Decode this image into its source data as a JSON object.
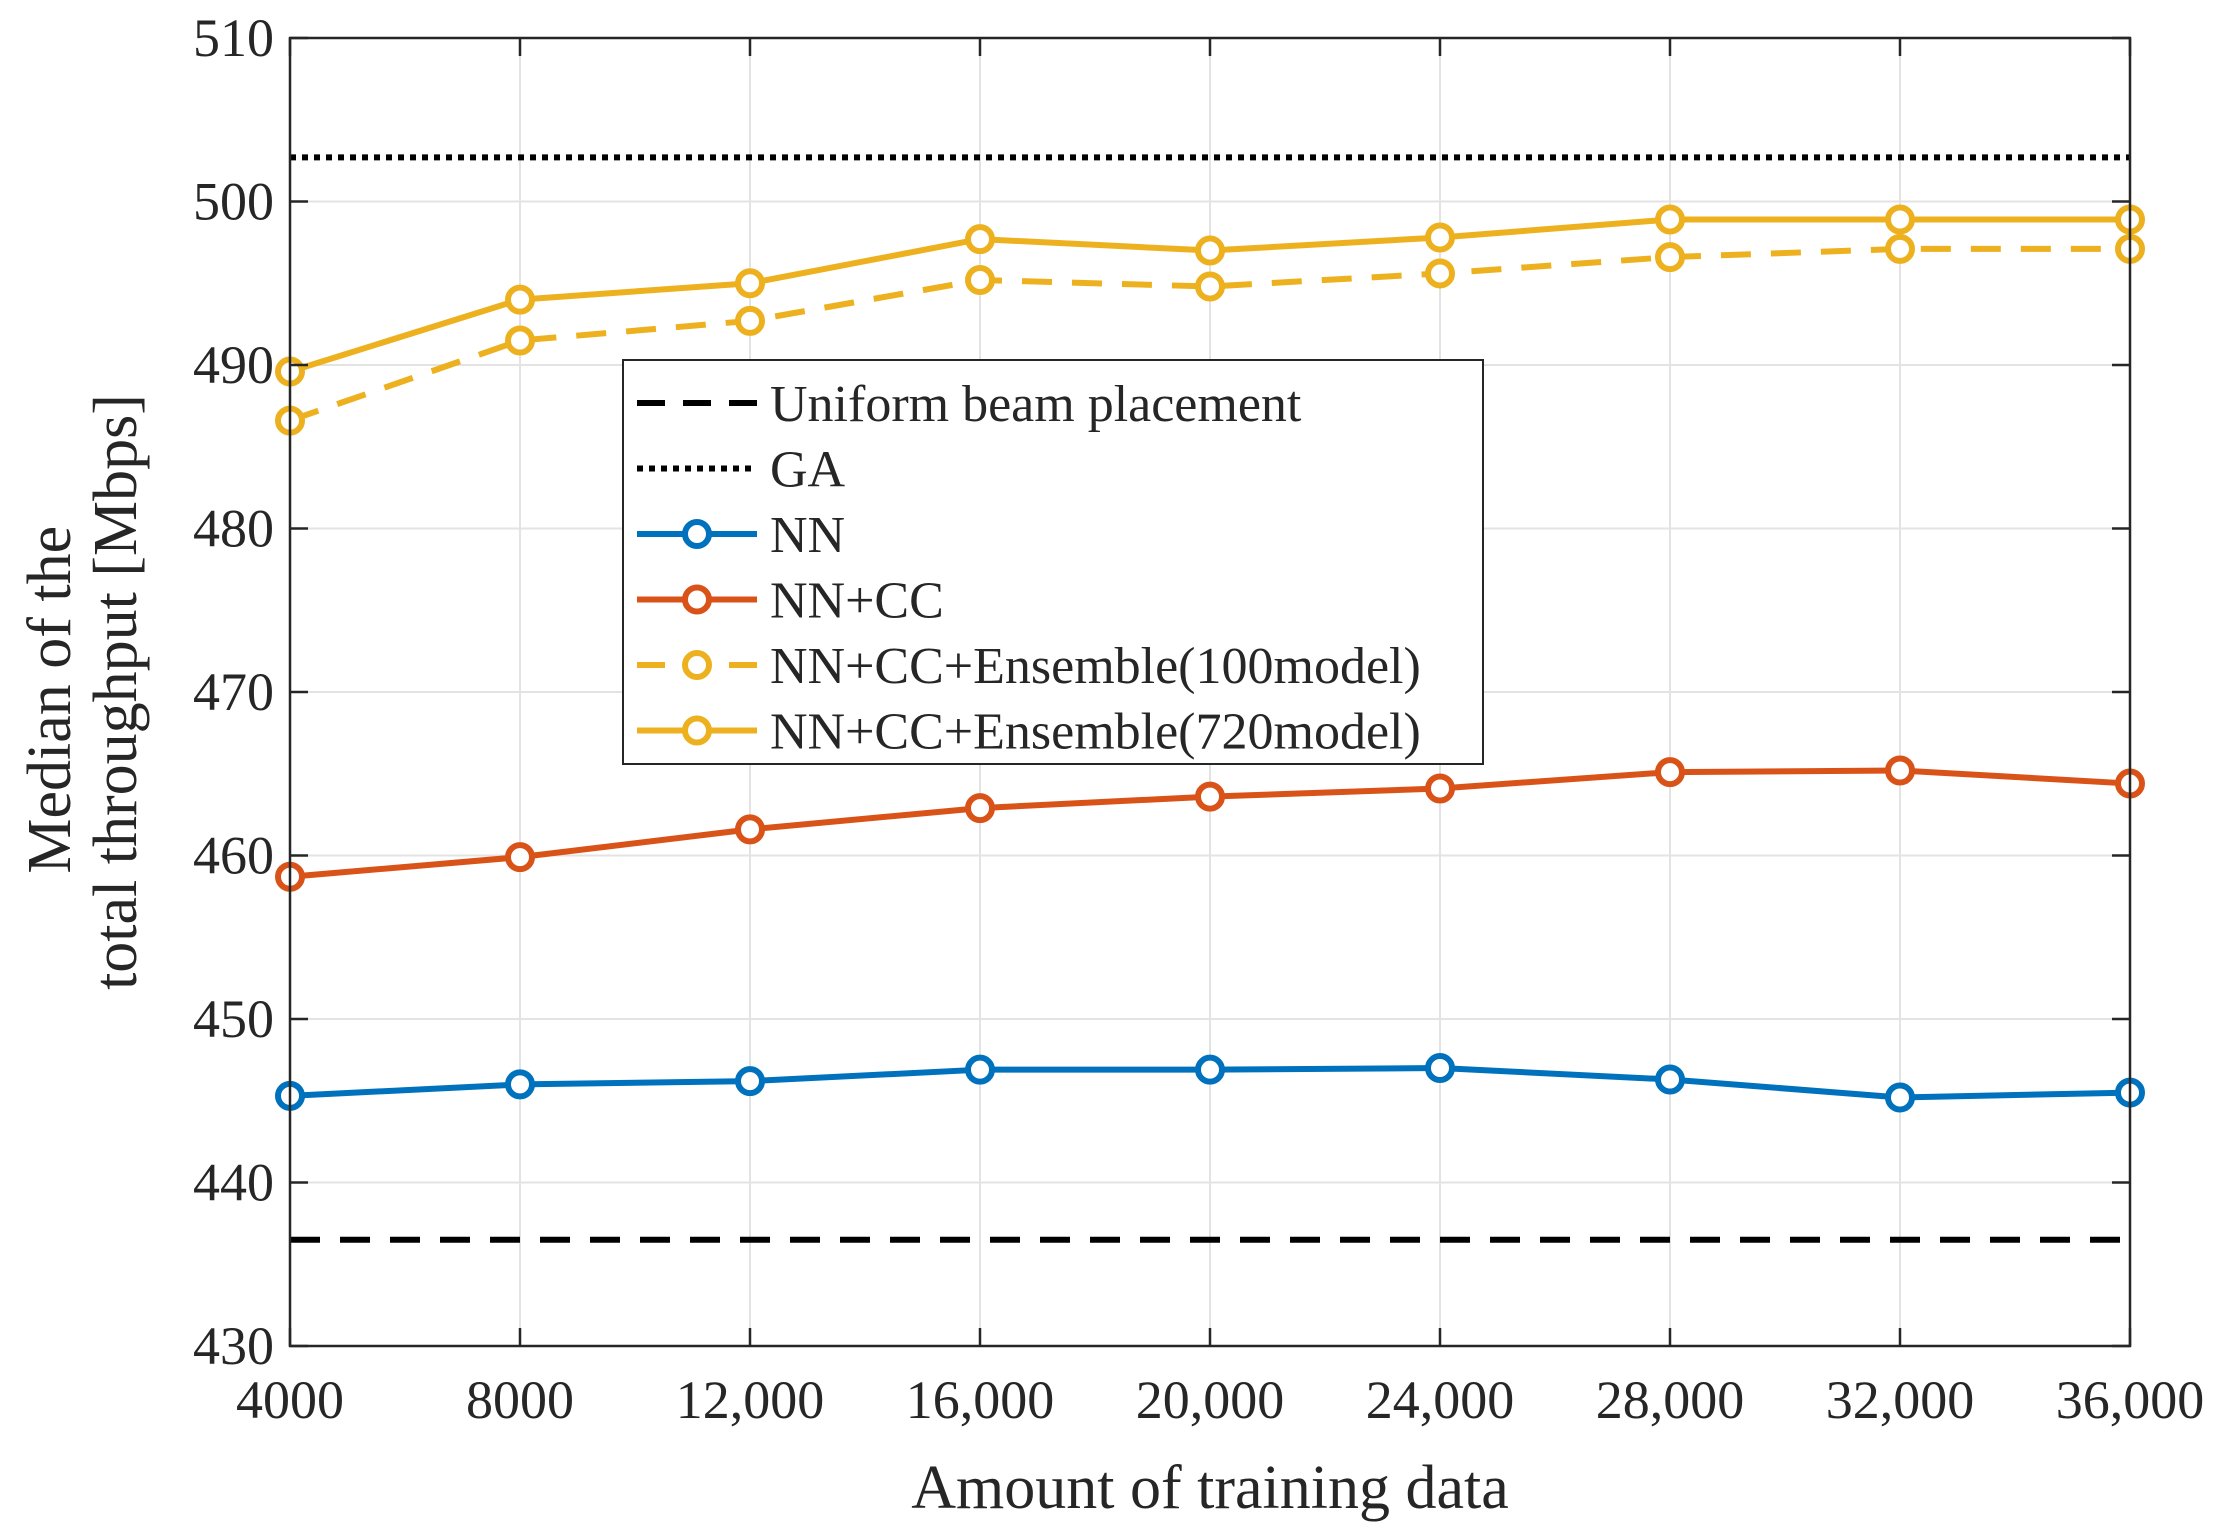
{
  "chart_data": {
    "type": "line",
    "xlabel": "Amount of training data",
    "ylabel_lines": [
      "Median of the",
      "total throughput [Mbps]"
    ],
    "x": [
      4000,
      8000,
      12000,
      16000,
      20000,
      24000,
      28000,
      32000,
      36000
    ],
    "x_tick_labels": [
      "4000",
      "8000",
      "12,000",
      "16,000",
      "20,000",
      "24,000",
      "28,000",
      "32,000",
      "36,000"
    ],
    "xlim": [
      4000,
      36000
    ],
    "ylim": [
      430,
      510
    ],
    "y_ticks": [
      430,
      440,
      450,
      460,
      470,
      480,
      490,
      500,
      510
    ],
    "grid": true,
    "legend_position": "center-left",
    "series": [
      {
        "name": "Uniform beam placement",
        "color": "#000000",
        "line": "dashed",
        "marker": "none",
        "values": [
          436.5,
          436.5,
          436.5,
          436.5,
          436.5,
          436.5,
          436.5,
          436.5,
          436.5
        ]
      },
      {
        "name": "GA",
        "color": "#000000",
        "line": "dotted",
        "marker": "none",
        "values": [
          502.7,
          502.7,
          502.7,
          502.7,
          502.7,
          502.7,
          502.7,
          502.7,
          502.7
        ]
      },
      {
        "name": "NN",
        "color": "#0072BD",
        "line": "solid",
        "marker": "circle",
        "values": [
          445.3,
          446.0,
          446.2,
          446.9,
          446.9,
          447.0,
          446.3,
          445.2,
          445.5
        ]
      },
      {
        "name": "NN+CC",
        "color": "#D95319",
        "line": "solid",
        "marker": "circle",
        "values": [
          458.7,
          459.9,
          461.6,
          462.9,
          463.6,
          464.1,
          465.1,
          465.2,
          464.4
        ]
      },
      {
        "name": "NN+CC+Ensemble(100model)",
        "color": "#EDB120",
        "line": "dashed",
        "marker": "circle",
        "values": [
          486.6,
          491.5,
          492.7,
          495.2,
          494.8,
          495.6,
          496.6,
          497.1,
          497.1
        ]
      },
      {
        "name": "NN+CC+Ensemble(720model)",
        "color": "#EDB120",
        "line": "solid",
        "marker": "circle",
        "values": [
          489.6,
          494.0,
          495.0,
          497.7,
          497.0,
          497.8,
          498.9,
          498.9,
          498.9
        ]
      }
    ]
  }
}
